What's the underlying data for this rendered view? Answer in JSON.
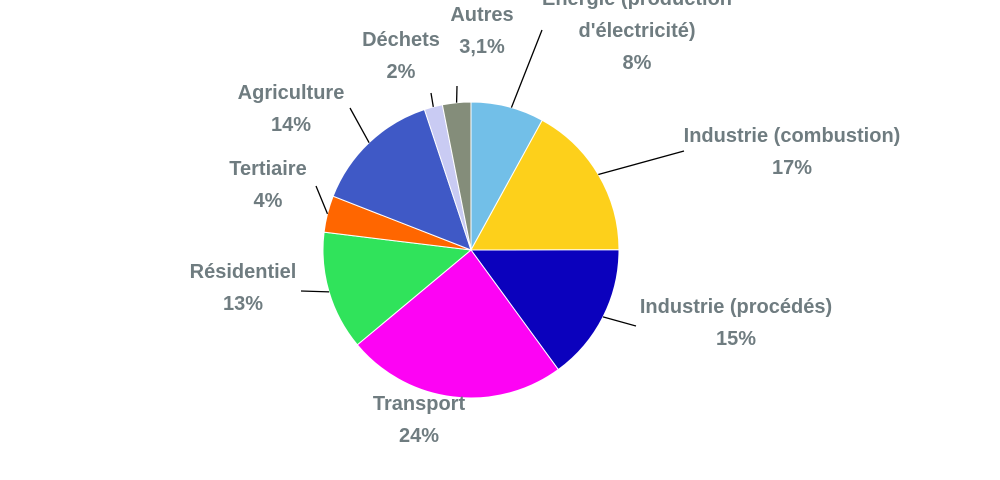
{
  "chart_data": {
    "type": "pie",
    "start_angle_deg": 0,
    "direction": "clockwise",
    "slices": [
      {
        "label": [
          "Energie (production",
          "d'électricité)"
        ],
        "pct_label": "8%",
        "value": 8,
        "color": "#72bfe8"
      },
      {
        "label": [
          "Industrie (combustion)"
        ],
        "pct_label": "17%",
        "value": 17,
        "color": "#fdd01b"
      },
      {
        "label": [
          "Industrie (procédés)"
        ],
        "pct_label": "15%",
        "value": 15,
        "color": "#0b01bd"
      },
      {
        "label": [
          "Transport"
        ],
        "pct_label": "24%",
        "value": 24,
        "color": "#fd03f4"
      },
      {
        "label": [
          "Résidentiel"
        ],
        "pct_label": "13%",
        "value": 13,
        "color": "#30e35b"
      },
      {
        "label": [
          "Tertiaire"
        ],
        "pct_label": "4%",
        "value": 4,
        "color": "#ff6600"
      },
      {
        "label": [
          "Agriculture"
        ],
        "pct_label": "14%",
        "value": 14,
        "color": "#3f59c6"
      },
      {
        "label": [
          "Déchets"
        ],
        "pct_label": "2%",
        "value": 2,
        "color": "#c9cbf3"
      },
      {
        "label": [
          "Autres"
        ],
        "pct_label": "3,1%",
        "value": 3.1,
        "color": "#848d7a"
      }
    ]
  }
}
